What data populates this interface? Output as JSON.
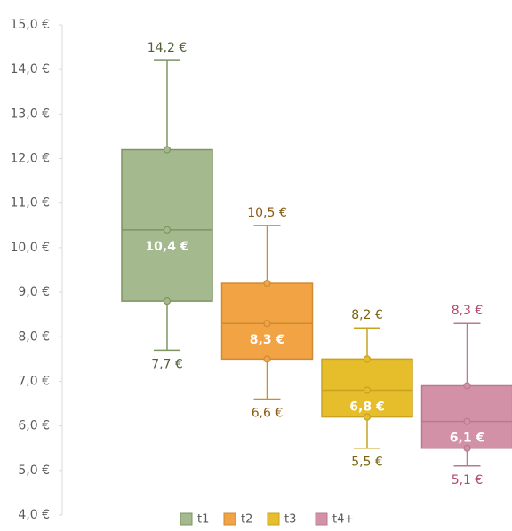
{
  "chart_data": {
    "type": "box",
    "ylim": [
      4,
      15
    ],
    "yticks": [
      {
        "value": 4,
        "label": "4,0 €"
      },
      {
        "value": 5,
        "label": "5,0 €"
      },
      {
        "value": 6,
        "label": "6,0 €"
      },
      {
        "value": 7,
        "label": "7,0 €"
      },
      {
        "value": 8,
        "label": "8,0 €"
      },
      {
        "value": 9,
        "label": "9,0 €"
      },
      {
        "value": 10,
        "label": "10,0 €"
      },
      {
        "value": 11,
        "label": "11,0 €"
      },
      {
        "value": 12,
        "label": "12,0 €"
      },
      {
        "value": 13,
        "label": "13,0 €"
      },
      {
        "value": 14,
        "label": "14,0 €"
      },
      {
        "value": 15,
        "label": "15,0 €"
      }
    ],
    "legend": "bottom",
    "series": [
      {
        "name": "t1",
        "color": "#a5b98e",
        "stroke": "#7d9463",
        "label_color": "#4f6236",
        "values": [
          7.7,
          8.8,
          10.4,
          12.2,
          14.2
        ],
        "value_labels": [
          "7,7 €",
          null,
          "10,4 €",
          null,
          "14,2 €"
        ]
      },
      {
        "name": "t2",
        "color": "#f2a444",
        "stroke": "#cf8a35",
        "label_color": "#8a5a12",
        "values": [
          6.6,
          7.5,
          8.3,
          9.2,
          10.5
        ],
        "value_labels": [
          "6,6 €",
          null,
          "8,3 €",
          null,
          "10,5 €"
        ]
      },
      {
        "name": "t3",
        "color": "#e6bd2a",
        "stroke": "#c9a222",
        "label_color": "#7a6410",
        "values": [
          5.5,
          6.2,
          6.8,
          7.5,
          8.2
        ],
        "value_labels": [
          "5,5 €",
          null,
          "6,8 €",
          null,
          "8,2 €"
        ]
      },
      {
        "name": "t4+",
        "color": "#d391a8",
        "stroke": "#b87a92",
        "label_color": "#b3476f",
        "values": [
          5.1,
          5.5,
          6.1,
          6.9,
          8.3
        ],
        "value_labels": [
          "5,1 €",
          null,
          "6,1 €",
          null,
          "8,3 €"
        ]
      }
    ]
  }
}
